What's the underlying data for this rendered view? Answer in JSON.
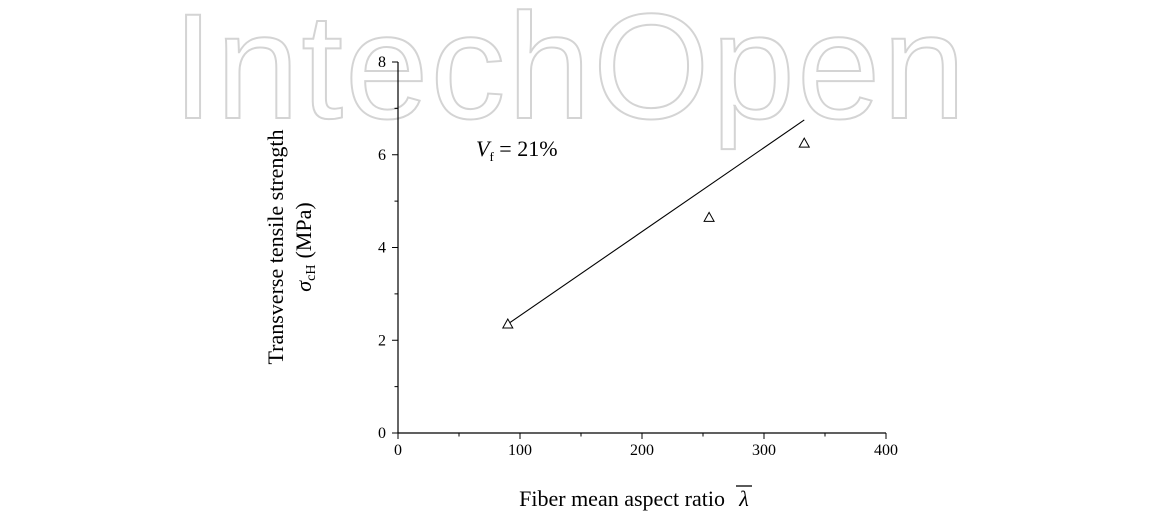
{
  "watermark": {
    "text": "IntechOpen"
  },
  "chart_data": {
    "type": "scatter",
    "title": "",
    "xlabel": "Fiber mean aspect ratio",
    "xsymbol": "λ",
    "ylabel_line1": "Transverse tensile strength",
    "ylabel_symbol": "σ",
    "ylabel_sub": "cH",
    "ylabel_unit": "(MPa)",
    "annotation": {
      "var": "V",
      "sub": "f",
      "rest": " = 21%"
    },
    "xlim": [
      0,
      400
    ],
    "ylim": [
      0,
      8
    ],
    "xticks": [
      "0",
      "100",
      "200",
      "300",
      "400"
    ],
    "yticks": [
      "0",
      "2",
      "4",
      "6",
      "8"
    ],
    "grid": false,
    "marker": "open-triangle",
    "points": [
      {
        "x": 90,
        "y": 2.35
      },
      {
        "x": 255,
        "y": 4.65
      },
      {
        "x": 333,
        "y": 6.25
      }
    ],
    "fit_line": {
      "x": [
        90,
        333
      ],
      "y": [
        2.35,
        6.75
      ]
    }
  }
}
